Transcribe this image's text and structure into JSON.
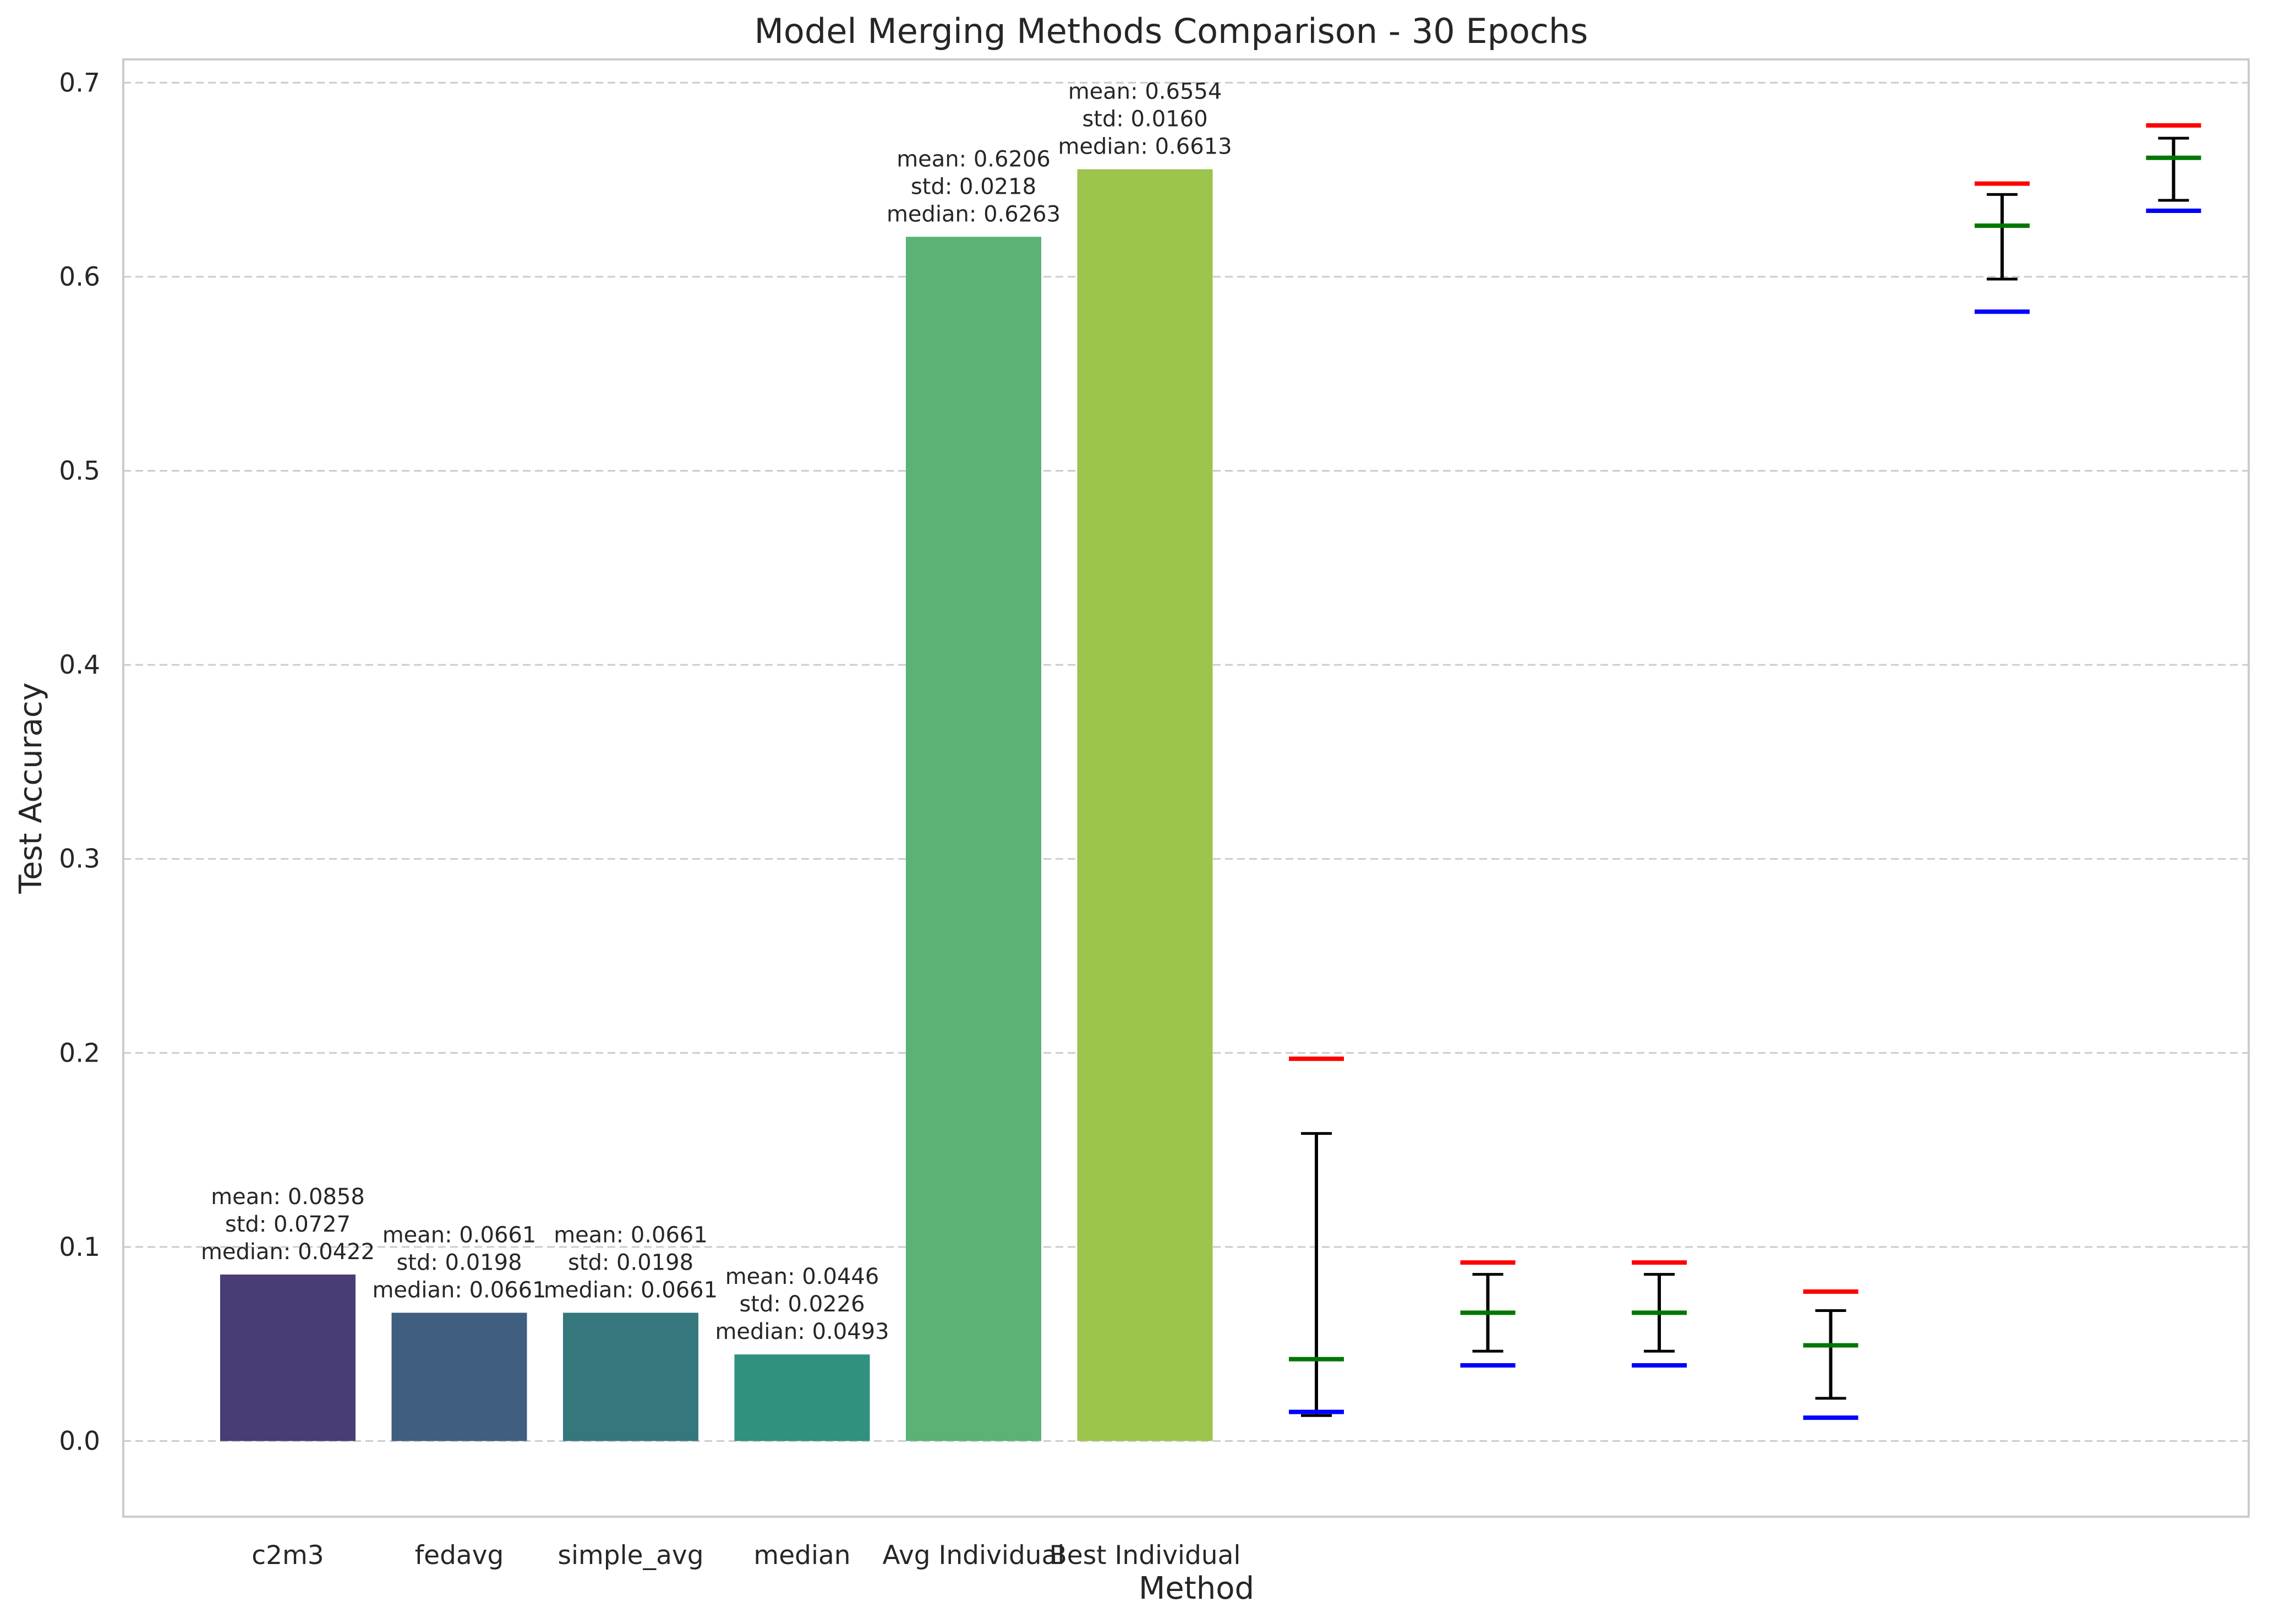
{
  "chart_data": {
    "type": "bar",
    "title": "Model Merging Methods Comparison - 30 Epochs",
    "xlabel": "Method",
    "ylabel": "Test Accuracy",
    "ylim": [
      -0.039,
      0.712
    ],
    "yticks": [
      0.0,
      0.1,
      0.2,
      0.3,
      0.4,
      0.5,
      0.6,
      0.7
    ],
    "ytick_labels": [
      "0.0",
      "0.1",
      "0.2",
      "0.3",
      "0.4",
      "0.5",
      "0.6",
      "0.7"
    ],
    "grid": "horizontal dashed",
    "categories": [
      "c2m3",
      "fedavg",
      "simple_avg",
      "median",
      "Avg Individual",
      "Best Individual"
    ],
    "bars": [
      {
        "category": "c2m3",
        "mean": 0.0858,
        "std": 0.0727,
        "median": 0.0422,
        "color": "#4a3c75",
        "annotation": [
          "mean: 0.0858",
          "std: 0.0727",
          "median: 0.0422"
        ]
      },
      {
        "category": "fedavg",
        "mean": 0.0661,
        "std": 0.0198,
        "median": 0.0661,
        "color": "#3f5e80",
        "annotation": [
          "mean: 0.0661",
          "std: 0.0198",
          "median: 0.0661"
        ]
      },
      {
        "category": "simple_avg",
        "mean": 0.0661,
        "std": 0.0198,
        "median": 0.0661,
        "color": "#36777e",
        "annotation": [
          "mean: 0.0661",
          "std: 0.0198",
          "median: 0.0661"
        ]
      },
      {
        "category": "median",
        "mean": 0.0446,
        "std": 0.0226,
        "median": 0.0493,
        "color": "#2f917e",
        "annotation": [
          "mean: 0.0446",
          "std: 0.0226",
          "median: 0.0493"
        ]
      },
      {
        "category": "Avg Individual",
        "mean": 0.6206,
        "std": 0.0218,
        "median": 0.6263,
        "color": "#5ab275",
        "annotation": [
          "mean: 0.6206",
          "std: 0.0218",
          "median: 0.6263"
        ]
      },
      {
        "category": "Best Individual",
        "mean": 0.6554,
        "std": 0.016,
        "median": 0.6613,
        "color": "#9bc54d",
        "annotation": [
          "mean: 0.6554",
          "std: 0.0160",
          "median: 0.6613"
        ]
      }
    ],
    "error_markers": [
      {
        "mean": 0.0858,
        "std": 0.0727,
        "max": 0.197,
        "median": 0.0422,
        "min": 0.015
      },
      {
        "mean": 0.0661,
        "std": 0.0198,
        "max": 0.092,
        "median": 0.0661,
        "min": 0.039
      },
      {
        "mean": 0.0661,
        "std": 0.0198,
        "max": 0.092,
        "median": 0.0661,
        "min": 0.039
      },
      {
        "mean": 0.0446,
        "std": 0.0226,
        "max": 0.077,
        "median": 0.0493,
        "min": 0.012
      },
      {
        "mean": 0.6206,
        "std": 0.0218,
        "max": 0.648,
        "median": 0.6263,
        "min": 0.582
      },
      {
        "mean": 0.6554,
        "std": 0.016,
        "max": 0.678,
        "median": 0.6613,
        "min": 0.634
      }
    ],
    "marker_colors": {
      "max": "#ff0000",
      "median": "#007700",
      "min": "#0000ff",
      "errorbar": "#000000"
    }
  }
}
